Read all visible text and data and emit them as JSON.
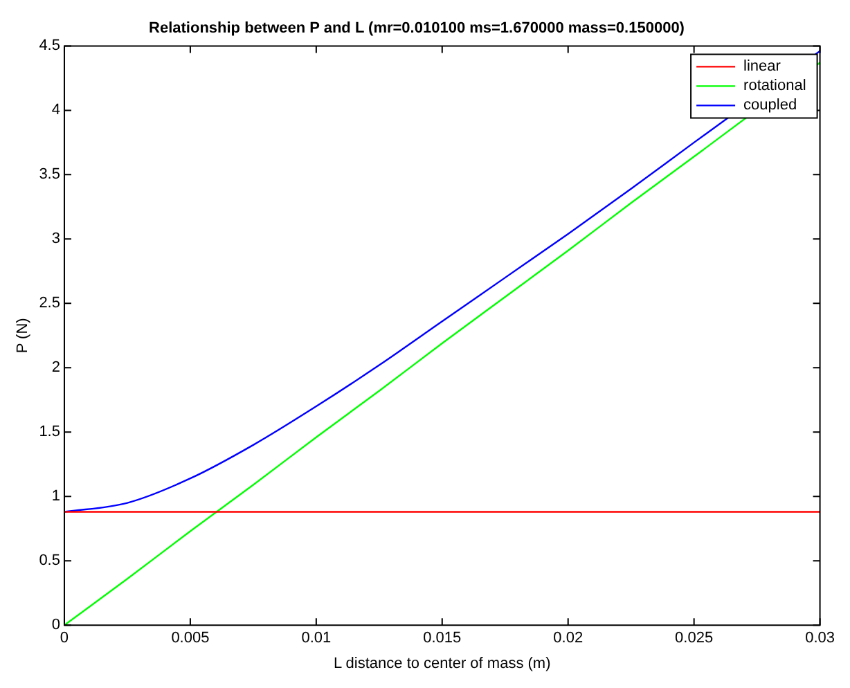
{
  "chart_data": {
    "type": "line",
    "title": "Relationship between P and L (mr=0.010100 ms=1.670000 mass=0.150000)",
    "xlabel": "L distance to center of mass (m)",
    "ylabel": "P (N)",
    "x": [
      0,
      0.0025,
      0.005,
      0.0075,
      0.01,
      0.0125,
      0.015,
      0.0175,
      0.02,
      0.0225,
      0.025,
      0.0275,
      0.03
    ],
    "series": [
      {
        "name": "linear",
        "color": "#ff0000",
        "values": [
          0.88,
          0.88,
          0.88,
          0.88,
          0.88,
          0.88,
          0.88,
          0.88,
          0.88,
          0.88,
          0.88,
          0.88,
          0.88
        ]
      },
      {
        "name": "rotational",
        "color": "#00ff00",
        "values": [
          0,
          0.36,
          0.73,
          1.09,
          1.46,
          1.82,
          2.19,
          2.55,
          2.91,
          3.28,
          3.64,
          null,
          4.37
        ]
      },
      {
        "name": "coupled",
        "color": "#0000ff",
        "values": [
          0.88,
          0.95,
          1.14,
          1.4,
          1.7,
          2.02,
          2.36,
          2.7,
          3.04,
          3.39,
          3.75,
          null,
          4.46
        ]
      }
    ],
    "xlim": [
      0,
      0.03
    ],
    "xticks": [
      0,
      0.005,
      0.01,
      0.015,
      0.02,
      0.025,
      0.03
    ],
    "ylim": [
      0,
      4.5
    ],
    "yticks": [
      0,
      0.5,
      1,
      1.5,
      2,
      2.5,
      3,
      3.5,
      4,
      4.5
    ],
    "legend": "top right",
    "marker": "none",
    "line_style": "solid"
  }
}
